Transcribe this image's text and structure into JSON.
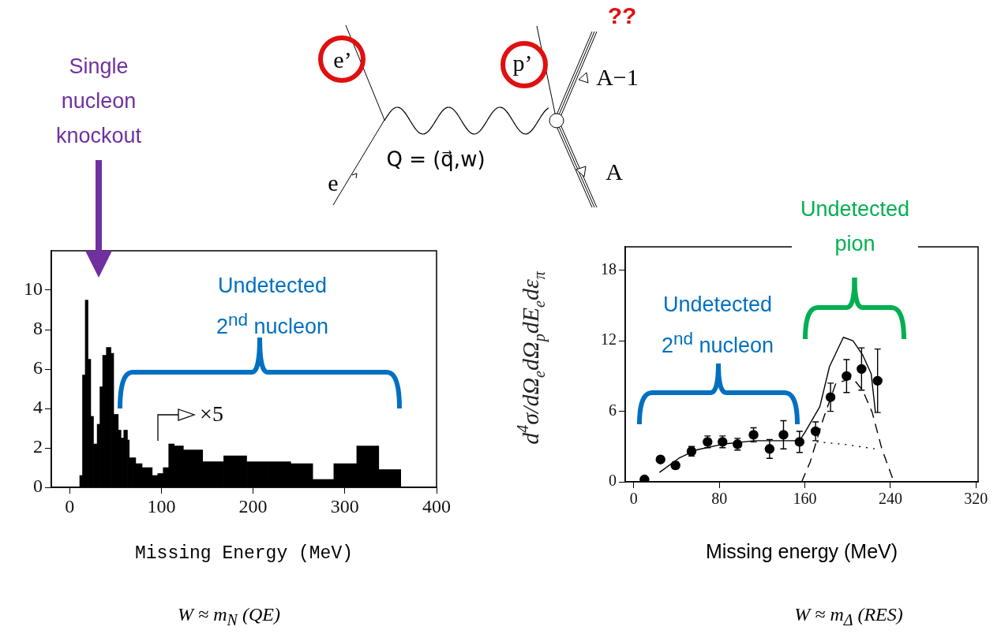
{
  "chart_data": [
    {
      "type": "other",
      "annotations": [
        "e’",
        "p’",
        "A−1",
        "A",
        "Q = (q⃗,w)",
        "e",
        "??"
      ]
    },
    {
      "type": "histogram",
      "xlabel": "Missing Energy (MeV)",
      "bins": [
        11,
        14,
        17,
        20,
        23,
        26,
        30,
        33,
        36,
        40,
        45,
        48,
        53,
        56,
        59,
        63,
        65,
        69,
        72,
        79,
        90,
        96,
        102,
        108,
        114,
        124,
        145,
        168,
        193,
        217,
        241,
        265,
        288,
        313,
        337,
        361
      ],
      "values": [
        0.6,
        5.7,
        9.5,
        6.5,
        3.6,
        2.2,
        3.2,
        5.1,
        6.7,
        7.1,
        6.8,
        3.7,
        2.9,
        2.5,
        2.9,
        2.4,
        1.5,
        1.5,
        1.2,
        1.0,
        0.6,
        0.7,
        1.0,
        2.2,
        2.1,
        1.9,
        1.3,
        1.6,
        1.3,
        1.3,
        1.2,
        0.4,
        1.2,
        2.1,
        0.9
      ],
      "color": "#000000",
      "xlim": [
        -20,
        400
      ],
      "xticks": [
        0,
        100,
        200,
        300,
        400
      ],
      "ylim": [
        0,
        12
      ],
      "yticks": [
        0,
        2,
        4,
        6,
        8,
        10
      ],
      "annotations": [
        "Single nucleon knockout",
        "Undetected 2$^{nd}$ nucleon",
        "×5",
        "W ≈ m$_{N}$ (QE)"
      ]
    },
    {
      "type": "scatter",
      "xlabel": "Missing energy (MeV)",
      "ylabel": "d$^{4}$σ/dΩ$_{e}$dΩ$_{p}$dE$_{e}$dε$_{π}$",
      "series": [
        {
          "type": "scatter",
          "color": "#000000",
          "marker": "circle",
          "x": [
            10,
            25,
            39,
            54,
            69,
            83,
            97,
            112,
            127,
            140,
            155,
            170,
            184,
            199,
            213,
            228
          ],
          "values": [
            0.2,
            1.9,
            1.4,
            2.6,
            3.4,
            3.4,
            3.2,
            4.0,
            2.8,
            4.0,
            3.4,
            4.3,
            7.2,
            9.0,
            9.6,
            8.6
          ],
          "errors": [
            null,
            null,
            0.3,
            0.4,
            0.5,
            0.5,
            0.5,
            0.6,
            0.8,
            1.2,
            0.9,
            0.8,
            1.2,
            1.4,
            1.8,
            2.7
          ]
        },
        {
          "type": "line",
          "color": "#000000",
          "marker": "none",
          "line_style": "solid",
          "x": [
            24,
            42,
            58,
            83,
            113,
            155,
            160,
            174,
            183,
            196,
            205,
            214,
            222,
            226
          ],
          "values": [
            0.8,
            2.0,
            2.7,
            3.2,
            3.5,
            3.5,
            4.2,
            6.4,
            9.8,
            12.3,
            12.0,
            10.8,
            9.2,
            5.9
          ]
        },
        {
          "type": "line",
          "color": "#000000",
          "marker": "none",
          "line_style": "dashed",
          "x": [
            157,
            165,
            177,
            189,
            205,
            214,
            223,
            232,
            242
          ],
          "values": [
            0,
            1.7,
            5.3,
            8.4,
            8.8,
            7.8,
            5.9,
            2.8,
            0.3
          ]
        },
        {
          "type": "line",
          "color": "#000000",
          "marker": "none",
          "line_style": "dotted",
          "x": [
            171,
            196,
            226
          ],
          "values": [
            3.4,
            3.2,
            2.8
          ]
        }
      ],
      "xlim": [
        -8,
        322
      ],
      "xticks": [
        0,
        80,
        160,
        240,
        320
      ],
      "ylim": [
        0,
        20
      ],
      "yticks": [
        0,
        6,
        12,
        18
      ],
      "annotations": [
        "Undetected 2$^{nd}$ nucleon",
        "Undetected pion",
        "W ≈ m$_{Δ}$ (RES)"
      ]
    }
  ]
}
